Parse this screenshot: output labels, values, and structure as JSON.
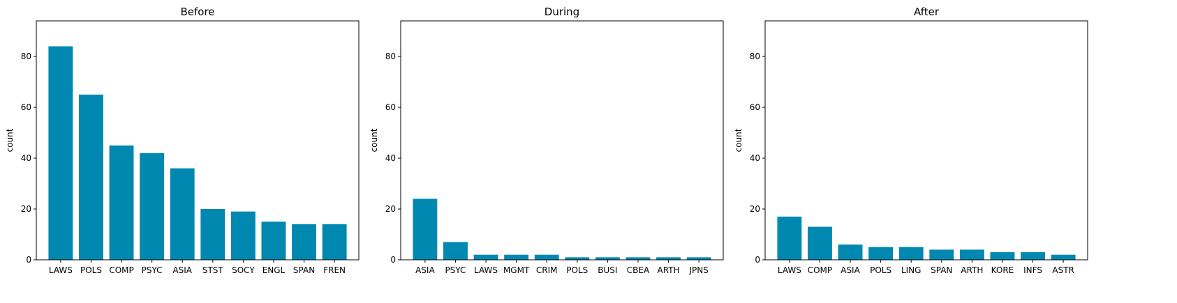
{
  "colors": {
    "bar": "#0088b0",
    "axis": "#000000",
    "background": "#ffffff"
  },
  "chart_data": [
    {
      "type": "bar",
      "title": "Before",
      "xlabel": "",
      "ylabel": "count",
      "ylim": [
        0,
        94
      ],
      "yticks": [
        0,
        20,
        40,
        60,
        80
      ],
      "categories": [
        "LAWS",
        "POLS",
        "COMP",
        "PSYC",
        "ASIA",
        "STST",
        "SOCY",
        "ENGL",
        "SPAN",
        "FREN"
      ],
      "values": [
        84,
        65,
        45,
        42,
        36,
        20,
        19,
        15,
        14,
        14
      ],
      "grid": false
    },
    {
      "type": "bar",
      "title": "During",
      "xlabel": "",
      "ylabel": "count",
      "ylim": [
        0,
        94
      ],
      "yticks": [
        0,
        20,
        40,
        60,
        80
      ],
      "categories": [
        "ASIA",
        "PSYC",
        "LAWS",
        "MGMT",
        "CRIM",
        "POLS",
        "BUSI",
        "CBEA",
        "ARTH",
        "JPNS"
      ],
      "values": [
        24,
        7,
        2,
        2,
        2,
        1,
        1,
        1,
        1,
        1
      ],
      "grid": false
    },
    {
      "type": "bar",
      "title": "After",
      "xlabel": "",
      "ylabel": "count",
      "ylim": [
        0,
        94
      ],
      "yticks": [
        0,
        20,
        40,
        60,
        80
      ],
      "categories": [
        "LAWS",
        "COMP",
        "ASIA",
        "POLS",
        "LING",
        "SPAN",
        "ARTH",
        "KORE",
        "INFS",
        "ASTR"
      ],
      "values": [
        17,
        13,
        6,
        5,
        5,
        4,
        4,
        3,
        3,
        2
      ],
      "grid": false
    }
  ]
}
